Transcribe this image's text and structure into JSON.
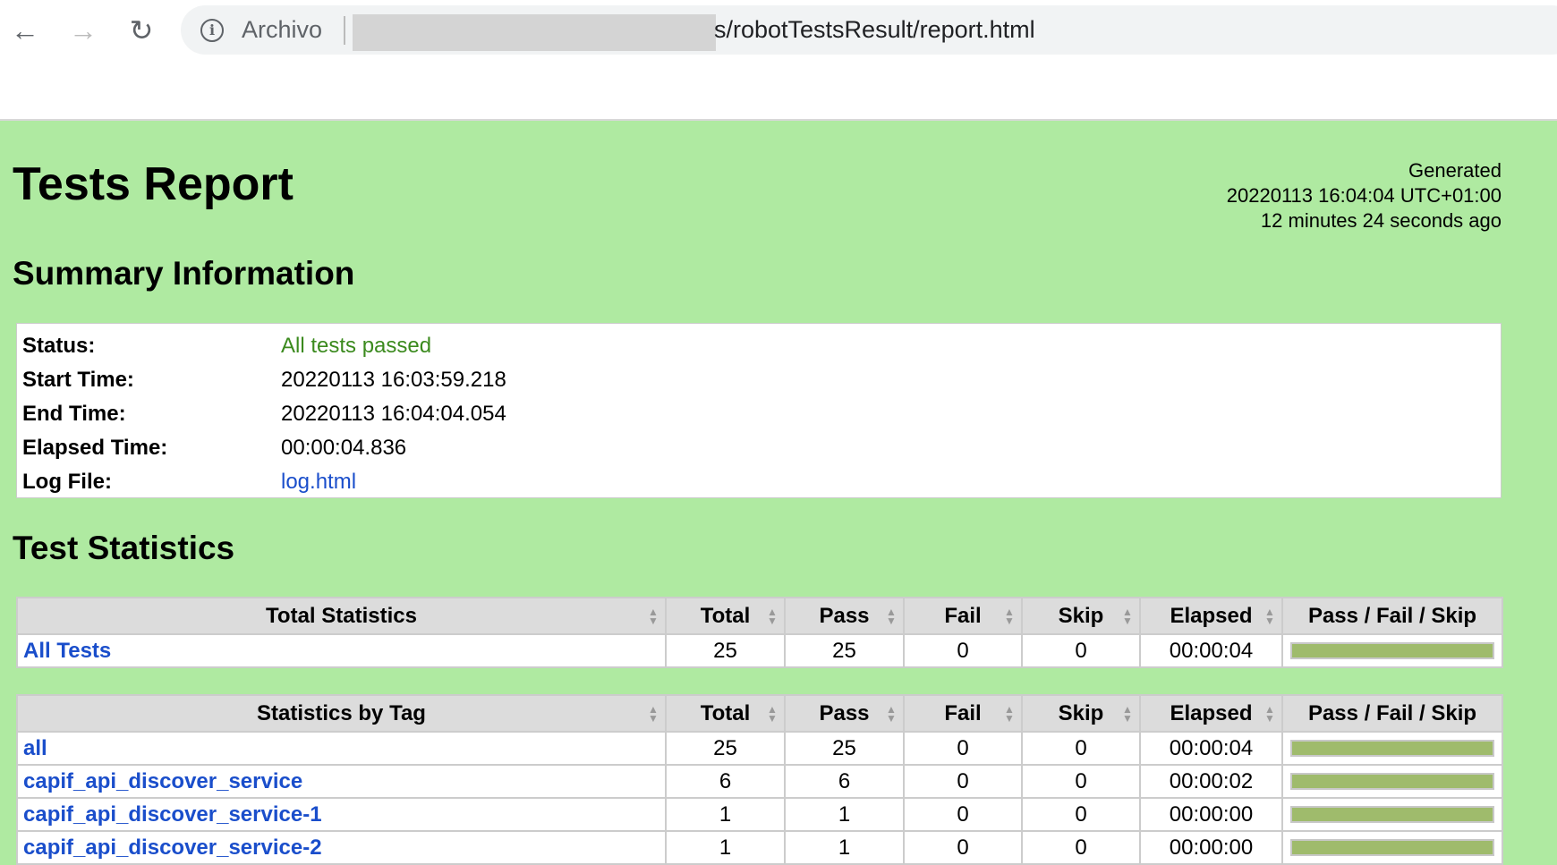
{
  "browser": {
    "address_scheme": "Archivo",
    "url_visible": "s/robotTestsResult/report.html"
  },
  "report": {
    "title": "Tests Report",
    "generated": {
      "label": "Generated",
      "timestamp": "20220113 16:04:04 UTC+01:00",
      "relative": "12 minutes 24 seconds ago"
    },
    "summary": {
      "heading": "Summary Information",
      "rows": [
        {
          "key": "Status:",
          "value": "All tests passed"
        },
        {
          "key": "Start Time:",
          "value": "20220113 16:03:59.218"
        },
        {
          "key": "End Time:",
          "value": "20220113 16:04:04.054"
        },
        {
          "key": "Elapsed Time:",
          "value": "00:00:04.836"
        },
        {
          "key": "Log File:",
          "value": "log.html"
        }
      ]
    },
    "statistics": {
      "heading": "Test Statistics",
      "columns": [
        "Total",
        "Pass",
        "Fail",
        "Skip",
        "Elapsed",
        "Pass / Fail / Skip"
      ],
      "total": {
        "header": "Total Statistics",
        "rows": [
          {
            "name": "All Tests",
            "total": "25",
            "pass": "25",
            "fail": "0",
            "skip": "0",
            "elapsed": "00:00:04",
            "pass_ratio": 1
          }
        ]
      },
      "by_tag": {
        "header": "Statistics by Tag",
        "rows": [
          {
            "name": "all",
            "total": "25",
            "pass": "25",
            "fail": "0",
            "skip": "0",
            "elapsed": "00:00:04",
            "pass_ratio": 1
          },
          {
            "name": "capif_api_discover_service",
            "total": "6",
            "pass": "6",
            "fail": "0",
            "skip": "0",
            "elapsed": "00:00:02",
            "pass_ratio": 1
          },
          {
            "name": "capif_api_discover_service-1",
            "total": "1",
            "pass": "1",
            "fail": "0",
            "skip": "0",
            "elapsed": "00:00:00",
            "pass_ratio": 1
          },
          {
            "name": "capif_api_discover_service-2",
            "total": "1",
            "pass": "1",
            "fail": "0",
            "skip": "0",
            "elapsed": "00:00:00",
            "pass_ratio": 1
          }
        ]
      }
    }
  },
  "colors": {
    "background": "#afeaa1",
    "pass_bar": "#9fbb6c",
    "link": "#1a4ecb",
    "status_pass": "#3b8a1e"
  }
}
